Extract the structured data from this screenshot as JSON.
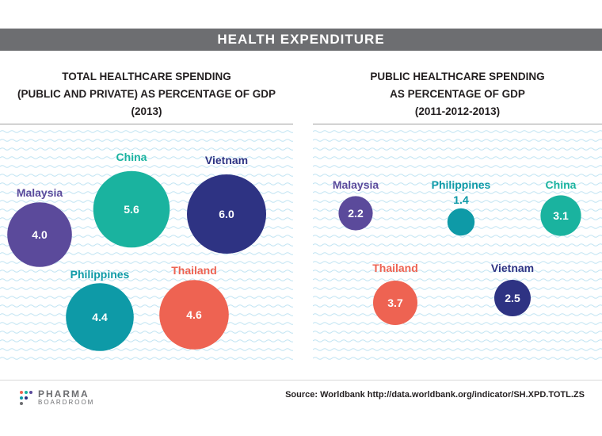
{
  "header": {
    "title": "HEALTH EXPENDITURE"
  },
  "chart_data": [
    {
      "type": "bubble",
      "title_lines": [
        "TOTAL HEALTHCARE SPENDING",
        "(PUBLIC AND PRIVATE) AS PERCENTAGE OF GDP",
        "(2013)"
      ],
      "points": [
        {
          "name": "Malaysia",
          "value": 4.0,
          "value_label": "4.0",
          "color": "#5b4a9b"
        },
        {
          "name": "China",
          "value": 5.6,
          "value_label": "5.6",
          "color": "#1ab39f"
        },
        {
          "name": "Vietnam",
          "value": 6.0,
          "value_label": "6.0",
          "color": "#2e3383"
        },
        {
          "name": "Philippines",
          "value": 4.4,
          "value_label": "4.4",
          "color": "#0e9aa7"
        },
        {
          "name": "Thailand",
          "value": 4.6,
          "value_label": "4.6",
          "color": "#ee6352"
        }
      ]
    },
    {
      "type": "bubble",
      "title_lines": [
        "PUBLIC HEALTHCARE SPENDING",
        "AS PERCENTAGE OF GDP",
        "(2011-2012-2013)"
      ],
      "points": [
        {
          "name": "Malaysia",
          "value": 2.2,
          "value_label": "2.2",
          "color": "#5b4a9b"
        },
        {
          "name": "Philippines",
          "value": 1.4,
          "value_label": "1.4",
          "color": "#0e9aa7"
        },
        {
          "name": "China",
          "value": 3.1,
          "value_label": "3.1",
          "color": "#1ab39f"
        },
        {
          "name": "Thailand",
          "value": 3.7,
          "value_label": "3.7",
          "color": "#ee6352"
        },
        {
          "name": "Vietnam",
          "value": 2.5,
          "value_label": "2.5",
          "color": "#2e3383"
        }
      ]
    }
  ],
  "footer": {
    "logo_line1": "PHARMA",
    "logo_line2": "BOARDROOM",
    "source": "Source: Worldbank http://data.worldbank.org/indicator/SH.XPD.TOTL.ZS"
  }
}
